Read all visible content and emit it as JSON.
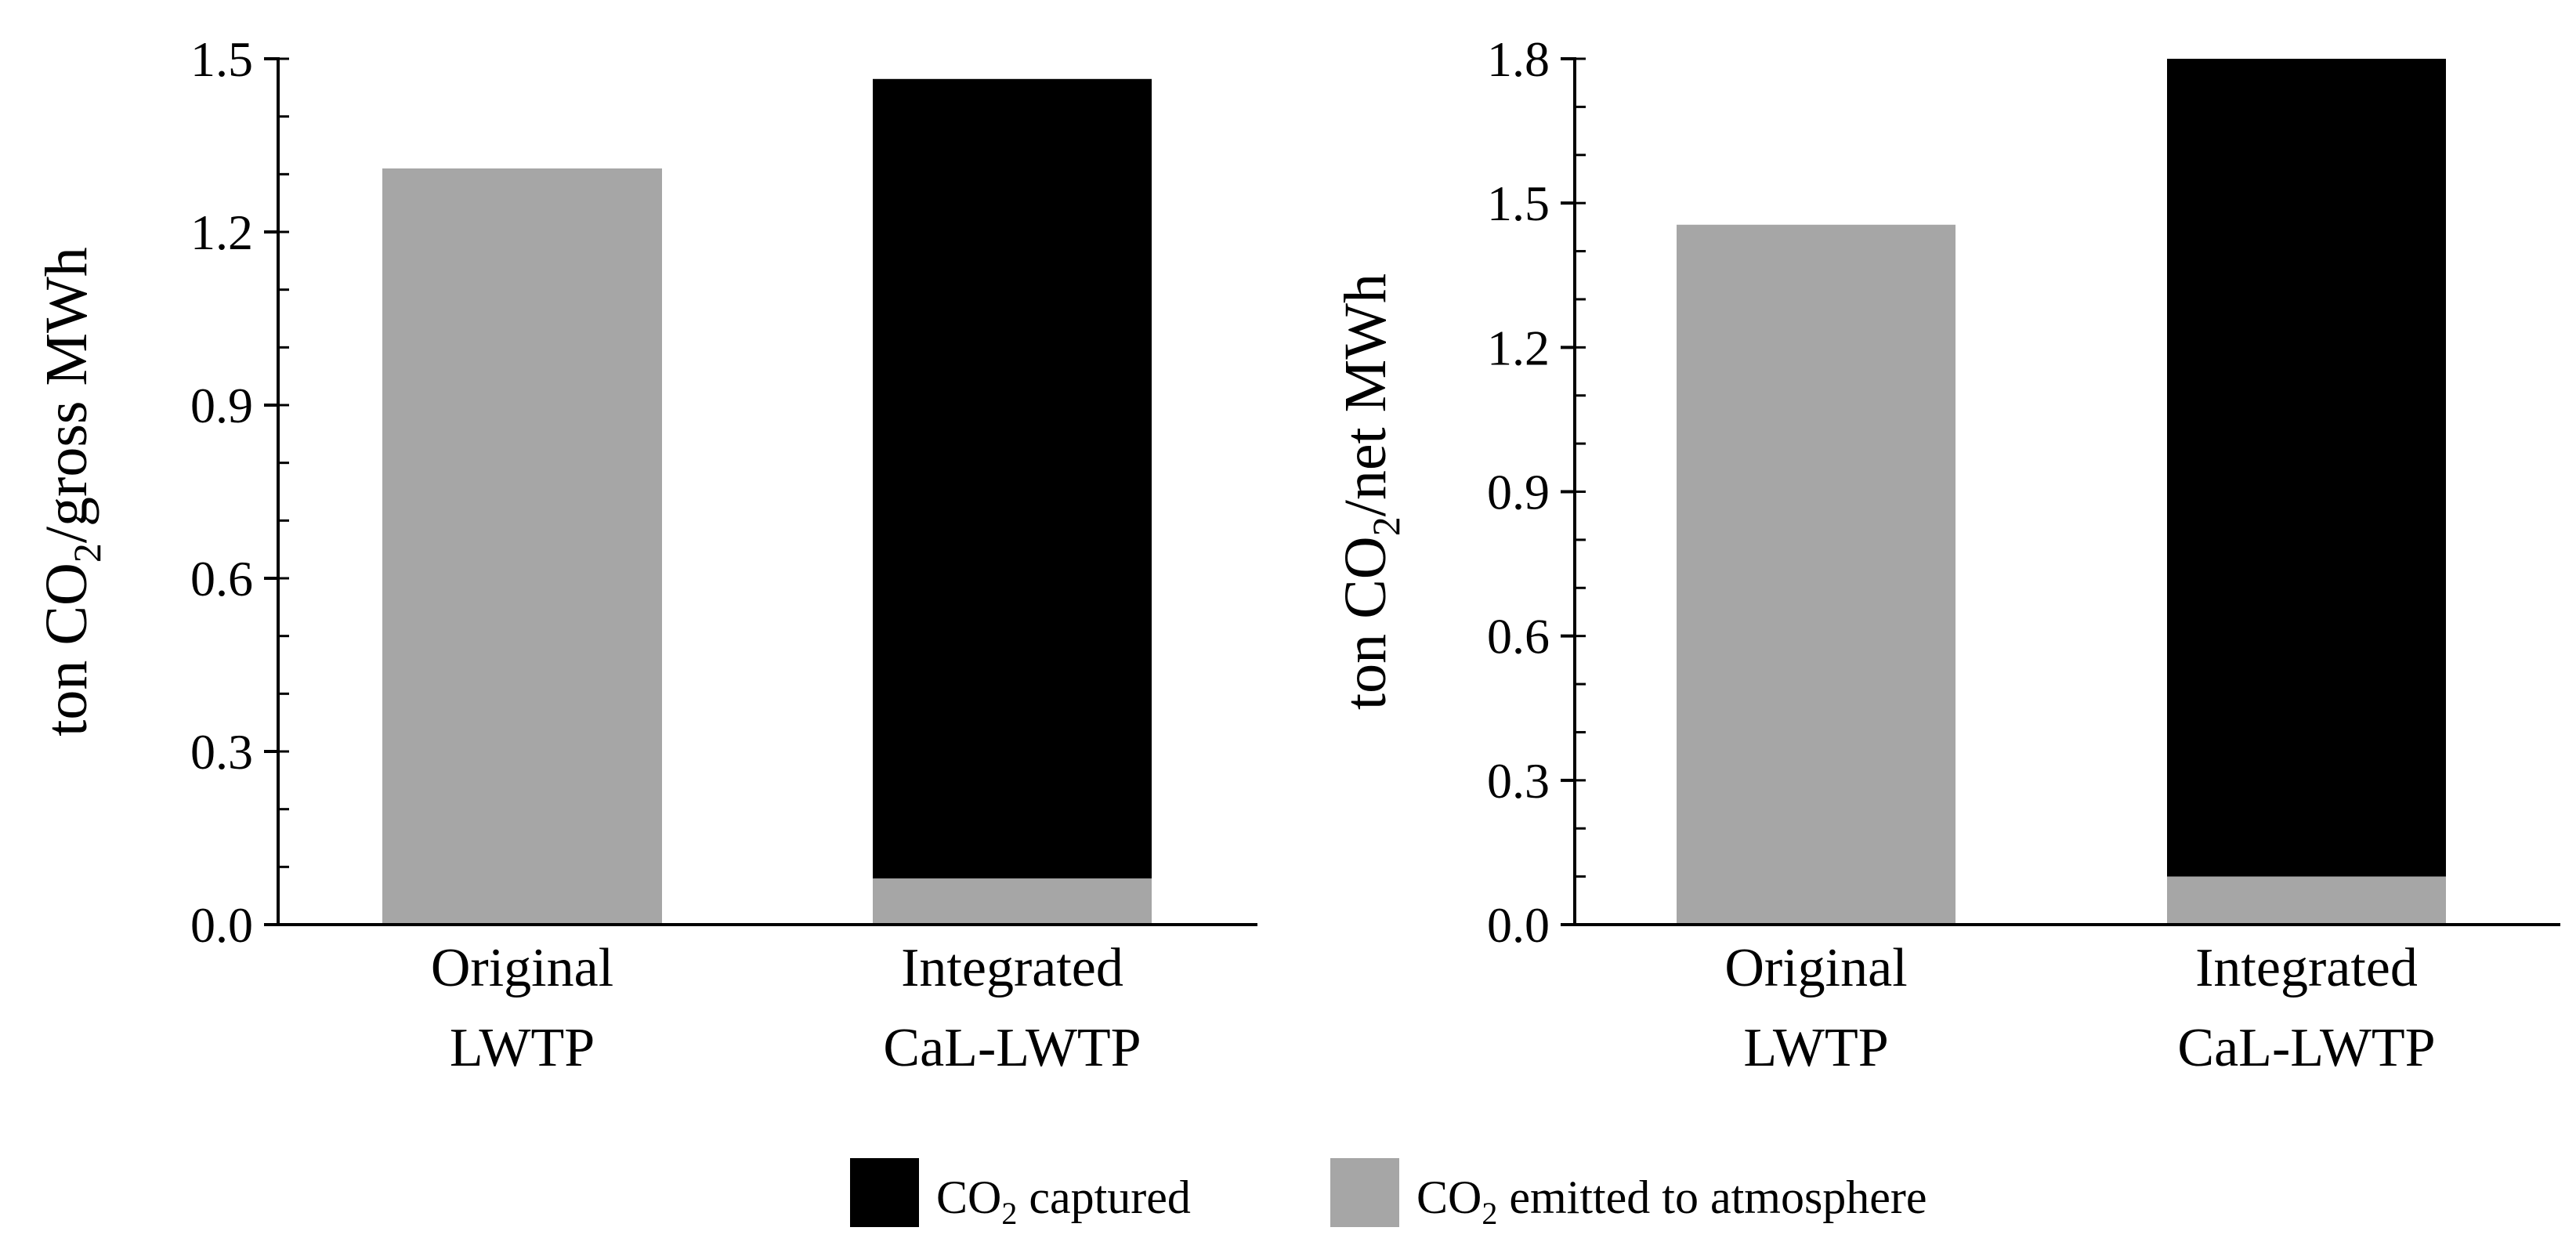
{
  "chart_data": [
    {
      "type": "bar",
      "stacked": true,
      "title": "",
      "ylabel": {
        "prefix": "ton CO",
        "sub": "2",
        "suffix": "/gross MWh"
      },
      "ylim": [
        0,
        1.5
      ],
      "ytick_labels": [
        "0.0",
        "0.3",
        "0.6",
        "0.9",
        "1.2",
        "1.5"
      ],
      "yticks": [
        0,
        0.3,
        0.6,
        0.9,
        1.2,
        1.5
      ],
      "minor_step": 0.1,
      "categories": [
        [
          "Original",
          "LWTP"
        ],
        [
          "Integrated",
          "CaL-LWTP"
        ]
      ],
      "series": [
        {
          "name": "CO2 emitted to atmosphere",
          "color": "#a6a6a6",
          "values": [
            1.31,
            0.08
          ]
        },
        {
          "name": "CO2 captured",
          "color": "#000000",
          "values": [
            0,
            1.385
          ]
        }
      ]
    },
    {
      "type": "bar",
      "stacked": true,
      "title": "",
      "ylabel": {
        "prefix": "ton CO",
        "sub": "2",
        "suffix": "/net MWh"
      },
      "ylim": [
        0,
        1.8
      ],
      "ytick_labels": [
        "0.0",
        "0.3",
        "0.6",
        "0.9",
        "1.2",
        "1.5",
        "1.8"
      ],
      "yticks": [
        0,
        0.3,
        0.6,
        0.9,
        1.2,
        1.5,
        1.8
      ],
      "minor_step": 0.1,
      "categories": [
        [
          "Original",
          "LWTP"
        ],
        [
          "Integrated",
          "CaL-LWTP"
        ]
      ],
      "series": [
        {
          "name": "CO2 emitted to atmosphere",
          "color": "#a6a6a6",
          "values": [
            1.455,
            0.1
          ]
        },
        {
          "name": "CO2 captured",
          "color": "#000000",
          "values": [
            0,
            1.7
          ]
        }
      ]
    }
  ],
  "legend": {
    "position": "bottom-center",
    "items": [
      {
        "prefix": "CO",
        "sub": "2",
        "suffix": " captured",
        "color": "#000000"
      },
      {
        "prefix": "CO",
        "sub": "2",
        "suffix": " emitted to atmosphere",
        "color": "#a6a6a6"
      }
    ]
  }
}
